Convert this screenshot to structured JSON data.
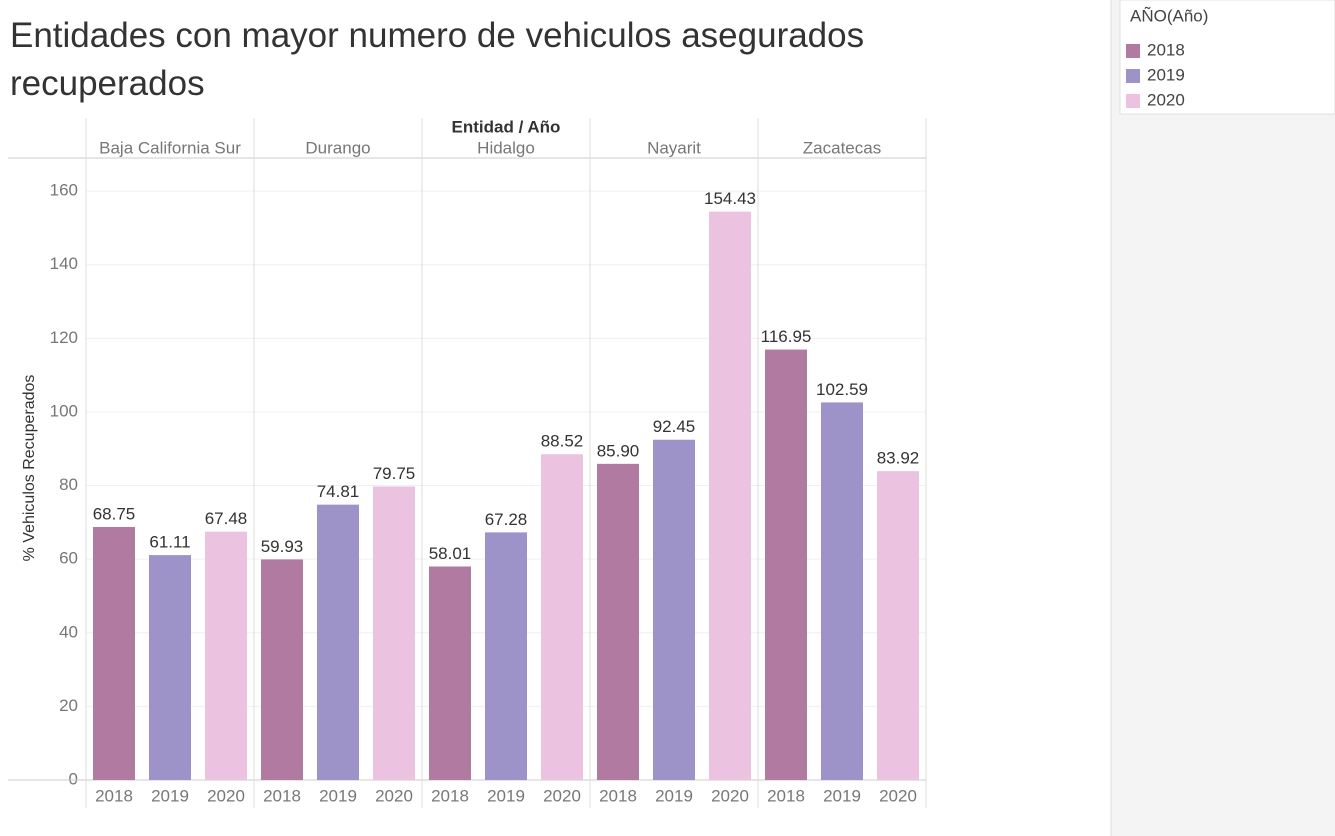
{
  "chart_data": {
    "type": "bar",
    "title": "Entidades con mayor numero de vehiculos asegurados recuperados",
    "header": "Entidad / Año",
    "y_label": "% Vehiculos Recuperados",
    "legend_title": "AÑO(Año)",
    "categories": [
      "Baja California Sur",
      "Durango",
      "Hidalgo",
      "Nayarit",
      "Zacatecas"
    ],
    "series": [
      {
        "name": "2018",
        "color": "#b07aa1",
        "values": [
          68.75,
          59.93,
          58.01,
          85.9,
          116.95
        ],
        "value_labels": [
          "68.75",
          "59.93",
          "58.01",
          "85.90",
          "116.95"
        ]
      },
      {
        "name": "2019",
        "color": "#9d93c9",
        "values": [
          61.11,
          74.81,
          67.28,
          92.45,
          102.59
        ],
        "value_labels": [
          "61.11",
          "74.81",
          "67.28",
          "92.45",
          "102.59"
        ]
      },
      {
        "name": "2020",
        "color": "#ebc2e0",
        "values": [
          67.48,
          79.75,
          88.52,
          154.43,
          83.92
        ],
        "value_labels": [
          "67.48",
          "79.75",
          "88.52",
          "154.43",
          "83.92"
        ]
      }
    ],
    "ylim": [
      0,
      169
    ],
    "yticks": [
      0,
      20,
      40,
      60,
      80,
      100,
      120,
      140,
      160
    ],
    "grid": true
  }
}
